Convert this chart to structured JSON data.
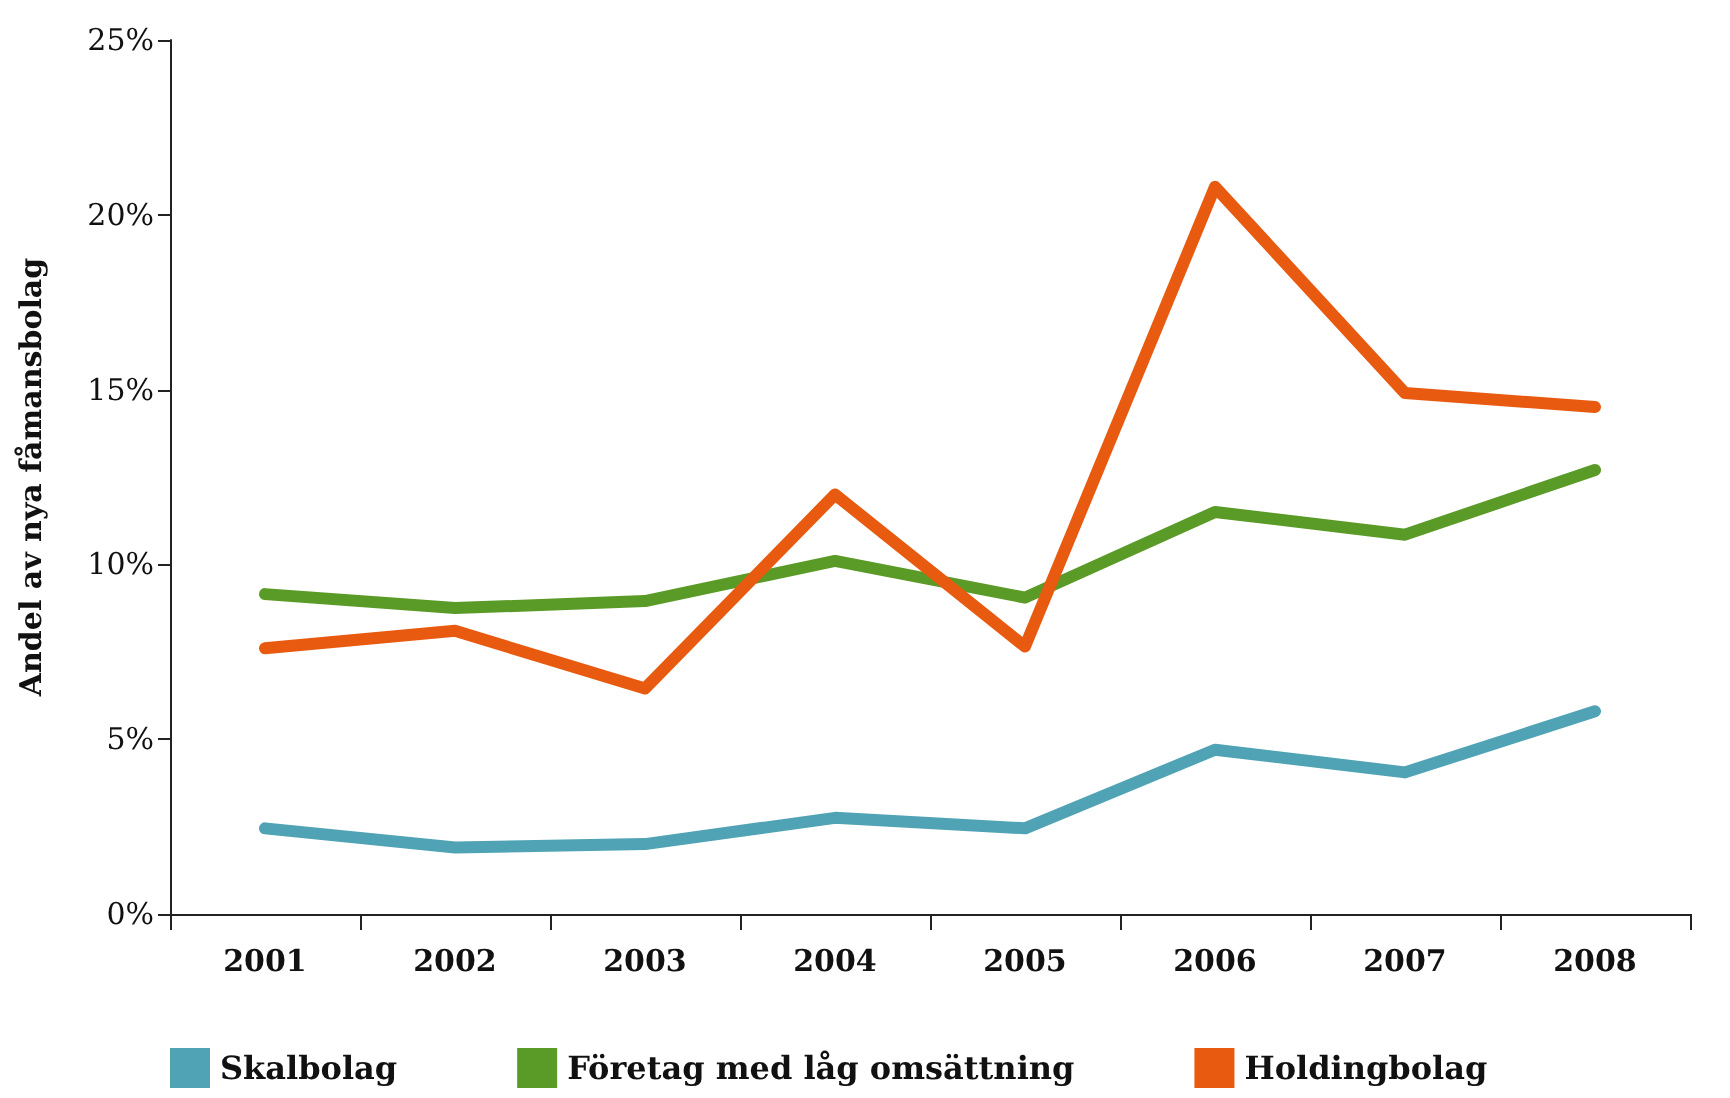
{
  "chart_data": {
    "type": "line",
    "ylabel": "Andel av nya fåmansbolag",
    "categories": [
      "2001",
      "2002",
      "2003",
      "2004",
      "2005",
      "2006",
      "2007",
      "2008"
    ],
    "ylim": [
      0,
      25
    ],
    "yticks": [
      {
        "value": 0,
        "label": "0%"
      },
      {
        "value": 5,
        "label": "5%"
      },
      {
        "value": 10,
        "label": "10%"
      },
      {
        "value": 15,
        "label": "15%"
      },
      {
        "value": 20,
        "label": "20%"
      },
      {
        "value": 25,
        "label": "25%"
      }
    ],
    "grid": false,
    "legend": "bottom",
    "marker": "none",
    "line_style": "solid",
    "series": [
      {
        "name": "Skalbolag",
        "color": "#4fa3b4",
        "values": [
          2.45,
          1.9,
          2.0,
          2.75,
          2.45,
          4.7,
          4.05,
          5.8
        ]
      },
      {
        "name": "Företag med låg omsättning",
        "color": "#5a9a26",
        "values": [
          9.15,
          8.75,
          8.95,
          10.1,
          9.05,
          11.5,
          10.85,
          12.7
        ]
      },
      {
        "name": "Holdingbolag",
        "color": "#e85a0f",
        "values": [
          7.6,
          8.1,
          6.45,
          12.0,
          7.65,
          20.8,
          14.9,
          14.5
        ]
      }
    ]
  }
}
